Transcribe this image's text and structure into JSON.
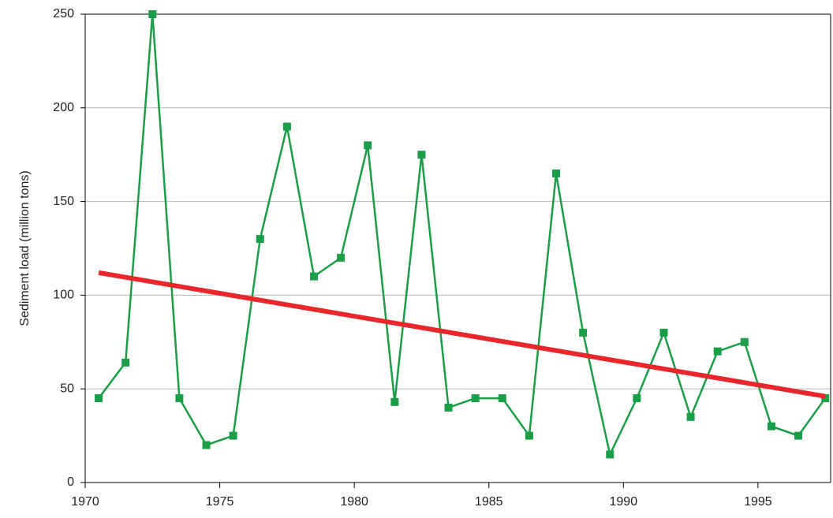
{
  "chart_data": {
    "type": "line",
    "y_label": "Sediment load (million tons)",
    "x": [
      1970.5,
      1971.5,
      1972.5,
      1973.5,
      1974.5,
      1975.5,
      1976.5,
      1977.5,
      1978.5,
      1979.5,
      1980.5,
      1981.5,
      1982.5,
      1983.5,
      1984.5,
      1985.5,
      1986.5,
      1987.5,
      1988.5,
      1989.5,
      1990.5,
      1991.5,
      1992.5,
      1993.5,
      1994.5,
      1995.5,
      1996.5,
      1997.5
    ],
    "series": [
      {
        "color": "#1a9e48",
        "values": [
          45,
          64,
          250,
          45,
          20,
          25,
          130,
          190,
          110,
          120,
          180,
          43,
          175,
          40,
          45,
          45,
          25,
          165,
          80,
          15,
          45,
          80,
          35,
          70,
          75,
          30,
          25,
          45
        ]
      }
    ],
    "trend": {
      "color": "#e8262b",
      "x": [
        1970.5,
        1997.5
      ],
      "values": [
        112,
        46
      ]
    },
    "xlim": [
      1970,
      1997.7
    ],
    "xticks": [
      1970,
      1975,
      1980,
      1985,
      1990,
      1995
    ],
    "ylim": [
      0,
      250
    ],
    "yticks": [
      0,
      50,
      100,
      150,
      200,
      250
    ],
    "grid": true
  }
}
